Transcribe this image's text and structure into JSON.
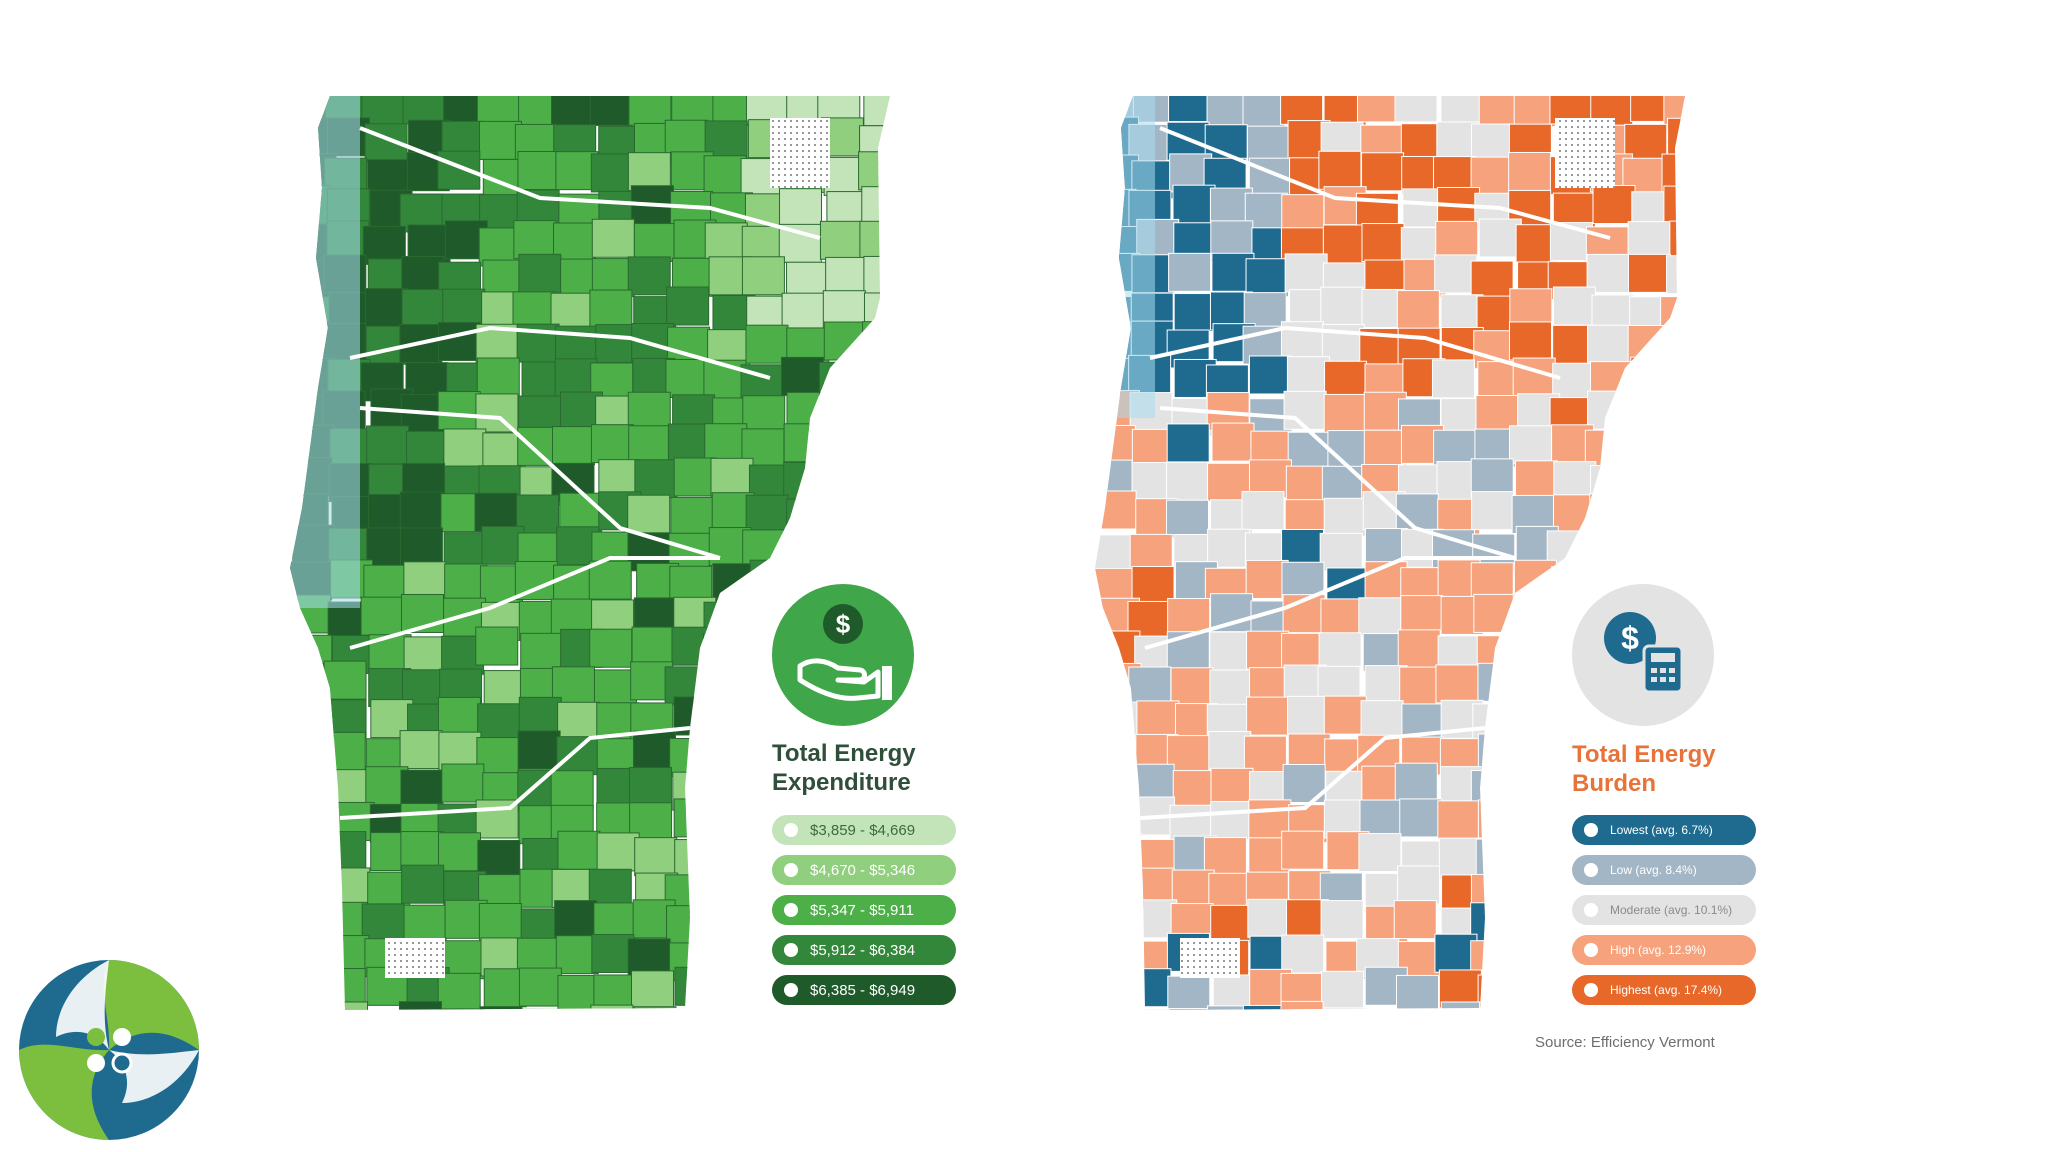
{
  "maps": {
    "expenditure": {
      "title": "Total Energy Expenditure",
      "icon": "hand-holding-dollar-icon",
      "legend": [
        {
          "label": "$3,859 - $4,669",
          "color": "#c3e3b9",
          "text_color": "#3a6b3e"
        },
        {
          "label": "$4,670 - $5,346",
          "color": "#8fcf7e",
          "text_color": "#ffffff"
        },
        {
          "label": "$5,347 - $5,911",
          "color": "#4caf47",
          "text_color": "#ffffff"
        },
        {
          "label": "$5,912 - $6,384",
          "color": "#32873a",
          "text_color": "#ffffff"
        },
        {
          "label": "$6,385 - $6,949",
          "color": "#1f5a2a",
          "text_color": "#ffffff"
        }
      ]
    },
    "burden": {
      "title": "Total Energy Burden",
      "icon": "dollar-calculator-icon",
      "legend": [
        {
          "label": "Lowest (avg. 6.7%)",
          "color": "#1f6b90",
          "text_color": "#ffffff"
        },
        {
          "label": "Low (avg. 8.4%)",
          "color": "#a3b6c5",
          "text_color": "#ffffff"
        },
        {
          "label": "Moderate (avg. 10.1%)",
          "color": "#e3e3e4",
          "text_color": "#8a8a8a"
        },
        {
          "label": "High (avg. 12.9%)",
          "color": "#f6a27c",
          "text_color": "#ffffff"
        },
        {
          "label": "Highest (avg. 17.4%)",
          "color": "#e8682a",
          "text_color": "#ffffff"
        }
      ]
    }
  },
  "source": "Source: Efficiency Vermont",
  "colors": {
    "water": "#a8dcef",
    "brand_green": "#7cbf3e",
    "brand_blue": "#1f6b90"
  }
}
